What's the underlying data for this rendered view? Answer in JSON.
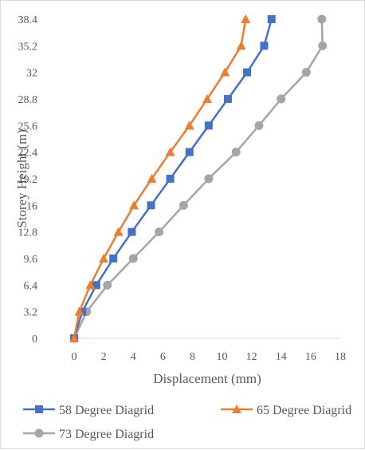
{
  "chart_data": {
    "type": "line",
    "xlabel": "Displacement (mm)",
    "ylabel": "Storey Height (m)",
    "xlim": [
      0,
      18
    ],
    "ylim": [
      0,
      38.4
    ],
    "x_ticks": [
      "0",
      "2",
      "4",
      "6",
      "8",
      "10",
      "12",
      "14",
      "16",
      "18"
    ],
    "y_ticks": [
      "0",
      "3.2",
      "6.4",
      "9.6",
      "12.8",
      "16",
      "19.2",
      "22.4",
      "25.6",
      "28.8",
      "32",
      "35.2",
      "38.4"
    ],
    "y_values": [
      0,
      3.2,
      6.4,
      9.6,
      12.8,
      16,
      19.2,
      22.4,
      25.6,
      28.8,
      32,
      35.2,
      38.4
    ],
    "grid": false,
    "legend_position": "bottom",
    "series": [
      {
        "name": "58 Degree Diagrid",
        "color": "#4472c4",
        "marker": "square",
        "values": [
          0,
          0.55,
          1.5,
          2.65,
          3.9,
          5.2,
          6.5,
          7.8,
          9.1,
          10.4,
          11.7,
          12.85,
          13.35
        ]
      },
      {
        "name": "65 Degree Diagrid",
        "color": "#ed7d31",
        "marker": "triangle",
        "values": [
          0,
          0.35,
          1.1,
          2.0,
          3.0,
          4.05,
          5.25,
          6.5,
          7.8,
          9.0,
          10.2,
          11.3,
          11.6
        ]
      },
      {
        "name": "73 Degree Diagrid",
        "color": "#a5a5a5",
        "marker": "circle",
        "values": [
          0,
          0.85,
          2.25,
          4.0,
          5.75,
          7.4,
          9.1,
          10.95,
          12.5,
          14.0,
          15.7,
          16.8,
          16.75
        ]
      }
    ]
  }
}
